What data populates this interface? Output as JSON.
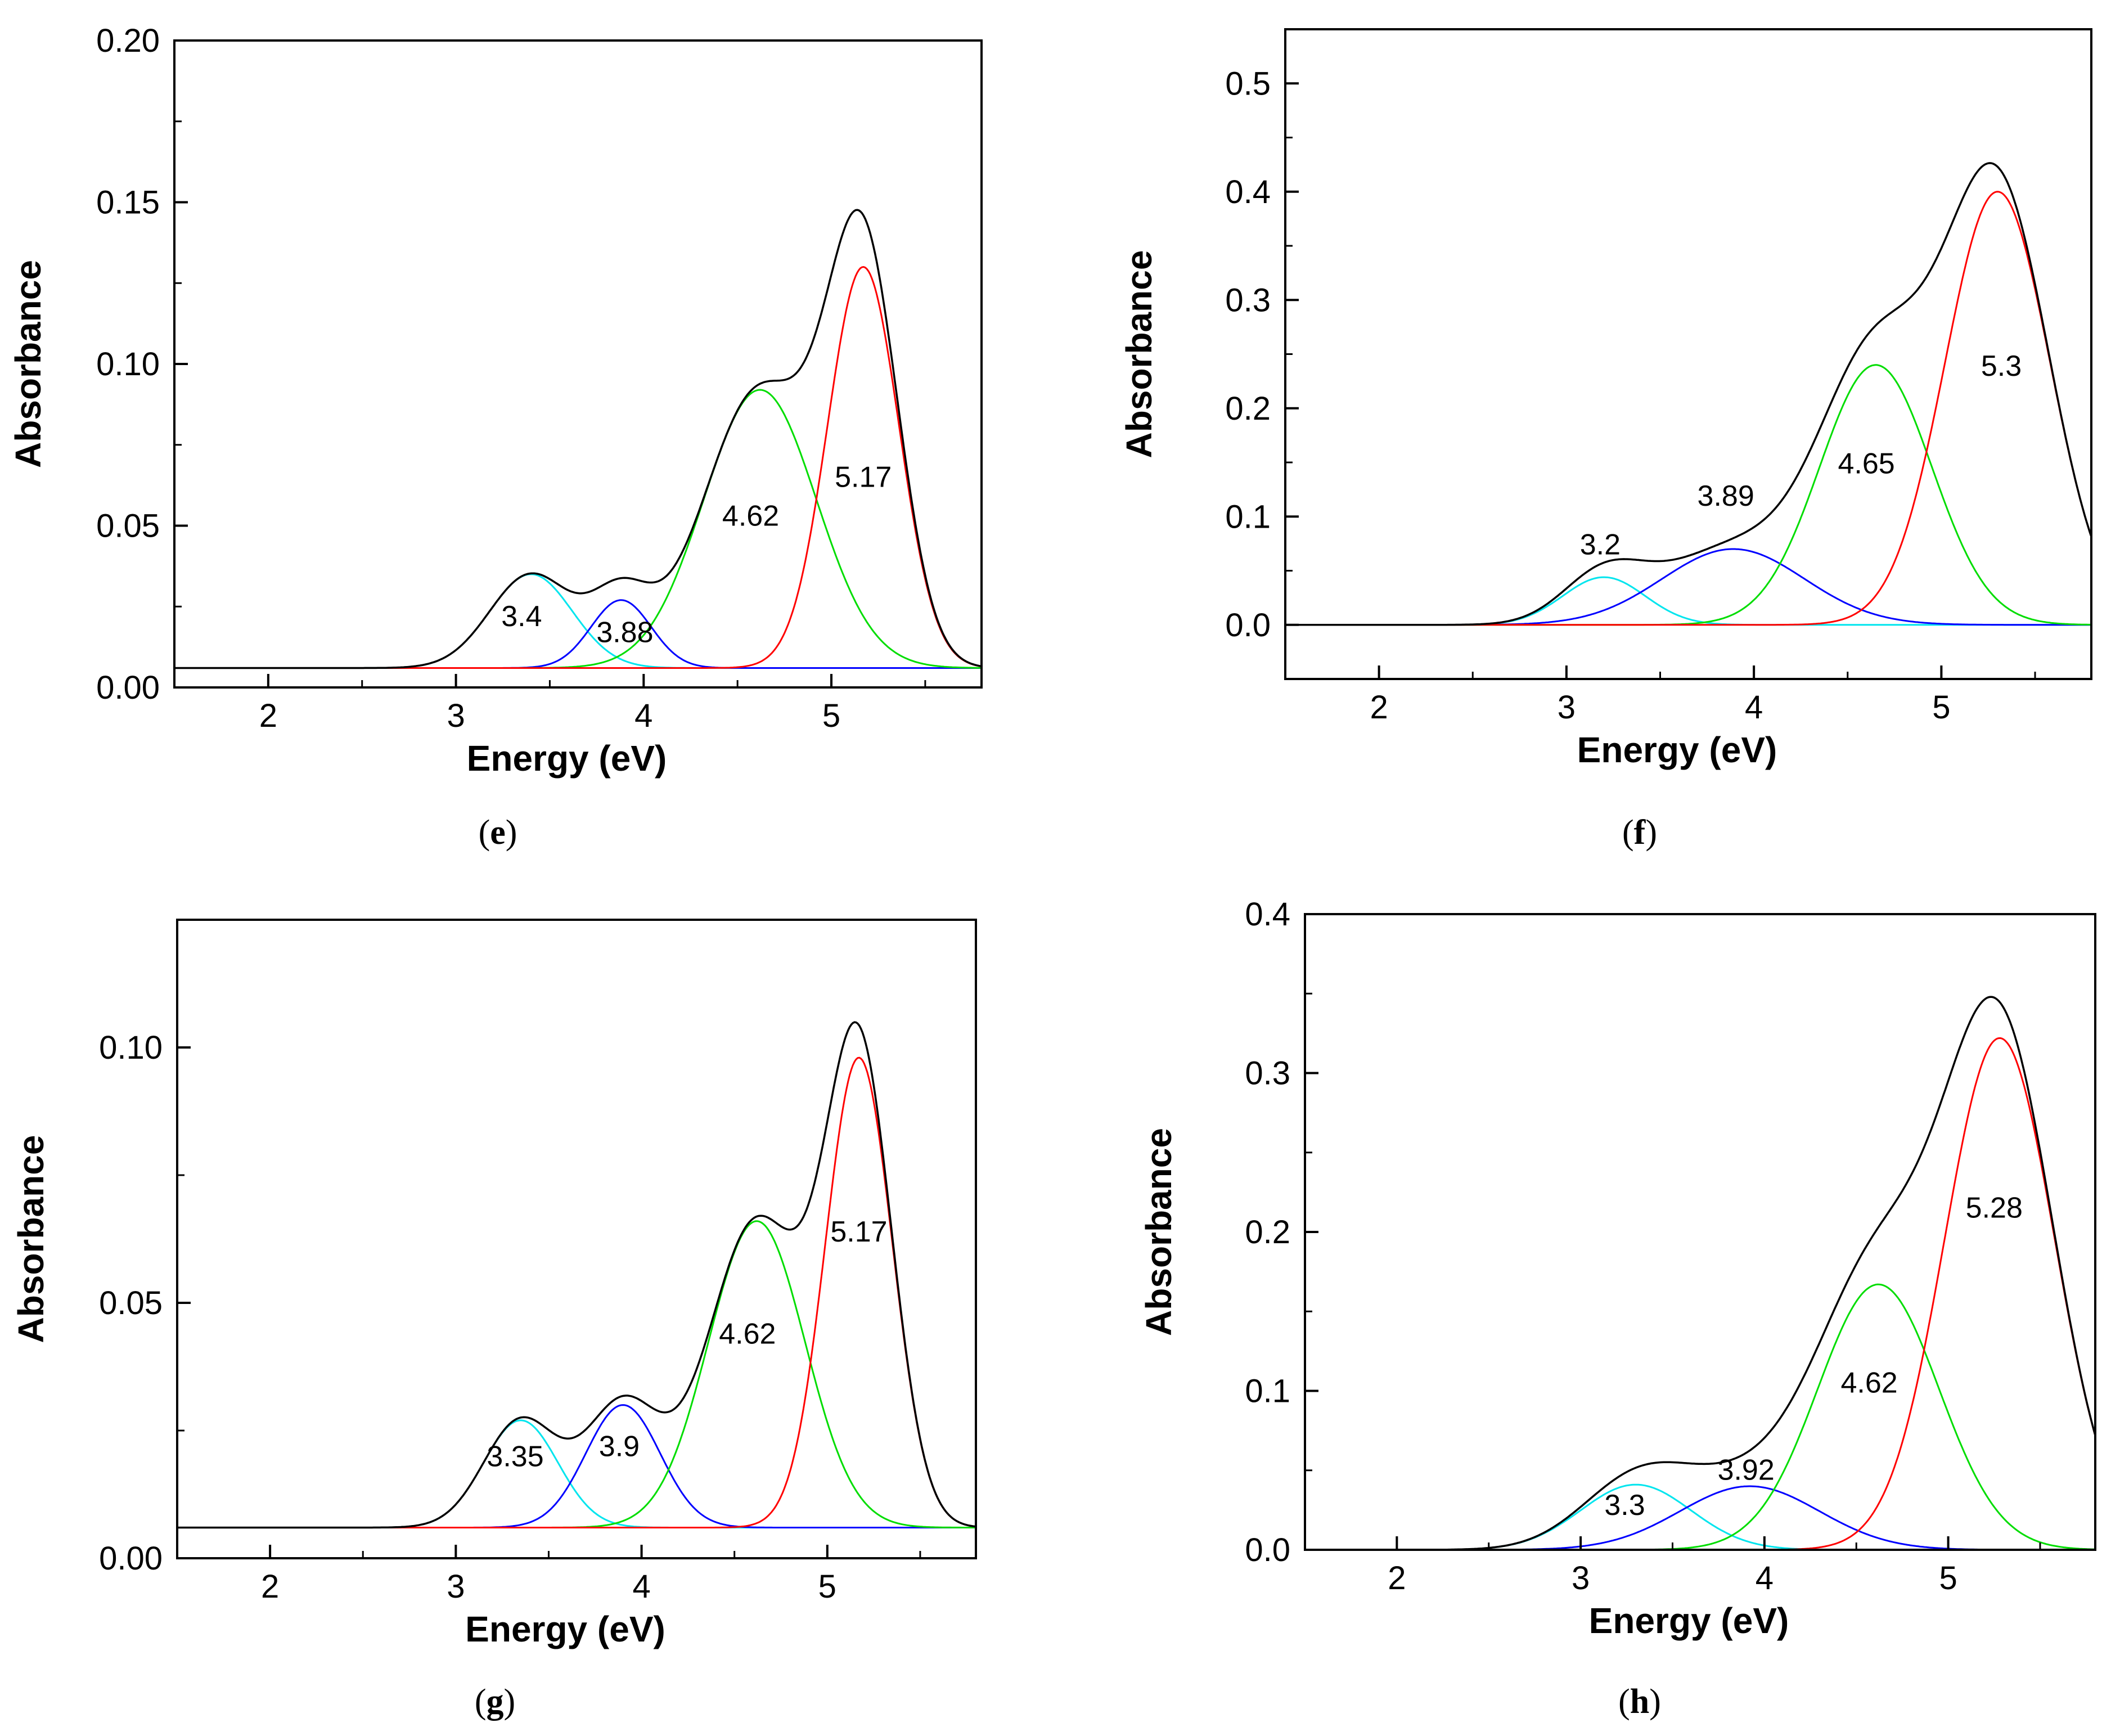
{
  "chart_data": [
    {
      "type": "line",
      "panel": "e",
      "caption_open": "(",
      "caption_letter": "e",
      "caption_close": ")",
      "xlabel": "Energy (eV)",
      "ylabel": "Absorbance",
      "xlim": [
        1.5,
        5.8
      ],
      "ylim": [
        0.0,
        0.2
      ],
      "xticks": [
        2,
        3,
        4,
        5
      ],
      "xtick_labels": [
        "2",
        "3",
        "4",
        "5"
      ],
      "yticks": [
        0.0,
        0.05,
        0.1,
        0.15,
        0.2
      ],
      "ytick_labels": [
        "0.00",
        "0.05",
        "0.10",
        "0.15",
        "0.20"
      ],
      "baseline": 0.006,
      "series": [
        {
          "name": "peak-3.4",
          "color": "#00e5ee",
          "center": 3.4,
          "amplitude": 0.029,
          "sigma": 0.22
        },
        {
          "name": "peak-3.88",
          "color": "#0000ff",
          "center": 3.88,
          "amplitude": 0.021,
          "sigma": 0.16
        },
        {
          "name": "peak-4.62",
          "color": "#00dd00",
          "center": 4.62,
          "amplitude": 0.086,
          "sigma": 0.3
        },
        {
          "name": "peak-5.17",
          "color": "#ff0000",
          "center": 5.17,
          "amplitude": 0.124,
          "sigma": 0.19
        }
      ],
      "sum_color": "#000000",
      "peak_labels": [
        {
          "text": "3.4",
          "x": 3.35,
          "y": 0.019
        },
        {
          "text": "3.88",
          "x": 3.9,
          "y": 0.014
        },
        {
          "text": "4.62",
          "x": 4.57,
          "y": 0.05
        },
        {
          "text": "5.17",
          "x": 5.17,
          "y": 0.062
        }
      ]
    },
    {
      "type": "line",
      "panel": "f",
      "caption_open": "(",
      "caption_letter": "f",
      "caption_close": ")",
      "xlabel": "Energy (eV)",
      "ylabel": "Absorbance",
      "xlim": [
        1.5,
        5.8
      ],
      "ylim": [
        -0.05,
        0.55
      ],
      "xticks": [
        2,
        3,
        4,
        5
      ],
      "xtick_labels": [
        "2",
        "3",
        "4",
        "5"
      ],
      "yticks": [
        0.0,
        0.1,
        0.2,
        0.3,
        0.4,
        0.5
      ],
      "ytick_labels": [
        "0.0",
        "0.1",
        "0.2",
        "0.3",
        "0.4",
        "0.5"
      ],
      "baseline": 0.0,
      "series": [
        {
          "name": "peak-3.2",
          "color": "#00e5ee",
          "center": 3.2,
          "amplitude": 0.044,
          "sigma": 0.22
        },
        {
          "name": "peak-3.89",
          "color": "#0000ff",
          "center": 3.89,
          "amplitude": 0.07,
          "sigma": 0.38
        },
        {
          "name": "peak-4.65",
          "color": "#00dd00",
          "center": 4.65,
          "amplitude": 0.24,
          "sigma": 0.3
        },
        {
          "name": "peak-5.3",
          "color": "#ff0000",
          "center": 5.3,
          "amplitude": 0.4,
          "sigma": 0.28
        }
      ],
      "sum_color": "#000000",
      "peak_labels": [
        {
          "text": "3.2",
          "x": 3.18,
          "y": 0.065
        },
        {
          "text": "3.89",
          "x": 3.85,
          "y": 0.11
        },
        {
          "text": "4.65",
          "x": 4.6,
          "y": 0.14
        },
        {
          "text": "5.3",
          "x": 5.32,
          "y": 0.23
        }
      ]
    },
    {
      "type": "line",
      "panel": "g",
      "caption_open": "(",
      "caption_letter": "g",
      "caption_close": ")",
      "xlabel": "Energy (eV)",
      "ylabel": "Absorbance",
      "xlim": [
        1.5,
        5.8
      ],
      "ylim": [
        0.0,
        0.125
      ],
      "xticks": [
        2,
        3,
        4,
        5
      ],
      "xtick_labels": [
        "2",
        "3",
        "4",
        "5"
      ],
      "yticks": [
        0.0,
        0.05,
        0.1
      ],
      "ytick_labels": [
        "0.00",
        "0.05",
        "0.10"
      ],
      "baseline": 0.006,
      "series": [
        {
          "name": "peak-3.35",
          "color": "#00e5ee",
          "center": 3.35,
          "amplitude": 0.021,
          "sigma": 0.2
        },
        {
          "name": "peak-3.9",
          "color": "#0000ff",
          "center": 3.9,
          "amplitude": 0.024,
          "sigma": 0.2
        },
        {
          "name": "peak-4.62",
          "color": "#00dd00",
          "center": 4.62,
          "amplitude": 0.06,
          "sigma": 0.26
        },
        {
          "name": "peak-5.17",
          "color": "#ff0000",
          "center": 5.17,
          "amplitude": 0.092,
          "sigma": 0.18
        }
      ],
      "sum_color": "#000000",
      "peak_labels": [
        {
          "text": "3.35",
          "x": 3.32,
          "y": 0.018
        },
        {
          "text": "3.9",
          "x": 3.88,
          "y": 0.02
        },
        {
          "text": "4.62",
          "x": 4.57,
          "y": 0.042
        },
        {
          "text": "5.17",
          "x": 5.17,
          "y": 0.062
        }
      ]
    },
    {
      "type": "line",
      "panel": "h",
      "caption_open": "(",
      "caption_letter": "h",
      "caption_close": ")",
      "xlabel": "Energy (eV)",
      "ylabel": "Absorbance",
      "xlim": [
        1.5,
        5.8
      ],
      "ylim": [
        0.0,
        0.4
      ],
      "xticks": [
        2,
        3,
        4,
        5
      ],
      "xtick_labels": [
        "2",
        "3",
        "4",
        "5"
      ],
      "yticks": [
        0.0,
        0.1,
        0.2,
        0.3,
        0.4
      ],
      "ytick_labels": [
        "0.0",
        "0.1",
        "0.2",
        "0.3",
        "0.4"
      ],
      "baseline": 0.0,
      "series": [
        {
          "name": "peak-3.3",
          "color": "#00e5ee",
          "center": 3.3,
          "amplitude": 0.041,
          "sigma": 0.3
        },
        {
          "name": "peak-3.92",
          "color": "#0000ff",
          "center": 3.92,
          "amplitude": 0.04,
          "sigma": 0.38
        },
        {
          "name": "peak-4.62",
          "color": "#00dd00",
          "center": 4.62,
          "amplitude": 0.167,
          "sigma": 0.33
        },
        {
          "name": "peak-5.28",
          "color": "#ff0000",
          "center": 5.28,
          "amplitude": 0.322,
          "sigma": 0.3
        }
      ],
      "sum_color": "#000000",
      "peak_labels": [
        {
          "text": "3.3",
          "x": 3.24,
          "y": 0.022
        },
        {
          "text": "3.92",
          "x": 3.9,
          "y": 0.044
        },
        {
          "text": "4.62",
          "x": 4.57,
          "y": 0.099
        },
        {
          "text": "5.28",
          "x": 5.25,
          "y": 0.209
        }
      ]
    }
  ]
}
